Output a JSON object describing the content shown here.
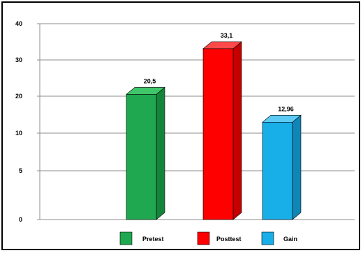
{
  "chart_data": {
    "type": "bar",
    "categories": [
      "Pretest",
      "Posttest",
      "Gain"
    ],
    "values": [
      20.5,
      33.1,
      12.96
    ],
    "data_labels": [
      "20,5",
      "33,1",
      "12,96"
    ],
    "colors": [
      "#1fa84f",
      "#ff0000",
      "#18aee8"
    ],
    "side_colors": [
      "#13843a",
      "#c40000",
      "#0f86b5"
    ],
    "top_colors": [
      "#3fc56a",
      "#ff4a4a",
      "#5ccaf4"
    ],
    "y_ticks": [
      {
        "value": 0,
        "label": "0"
      },
      {
        "value": 5,
        "label": "5"
      },
      {
        "value": 10,
        "label": "10"
      },
      {
        "value": 20,
        "label": "20"
      },
      {
        "value": 30,
        "label": "30"
      },
      {
        "value": 40,
        "label": "40"
      }
    ],
    "ylim": [
      0,
      40
    ],
    "grid": true,
    "legend_position": "bottom",
    "title": "",
    "xlabel": "",
    "ylabel": ""
  }
}
